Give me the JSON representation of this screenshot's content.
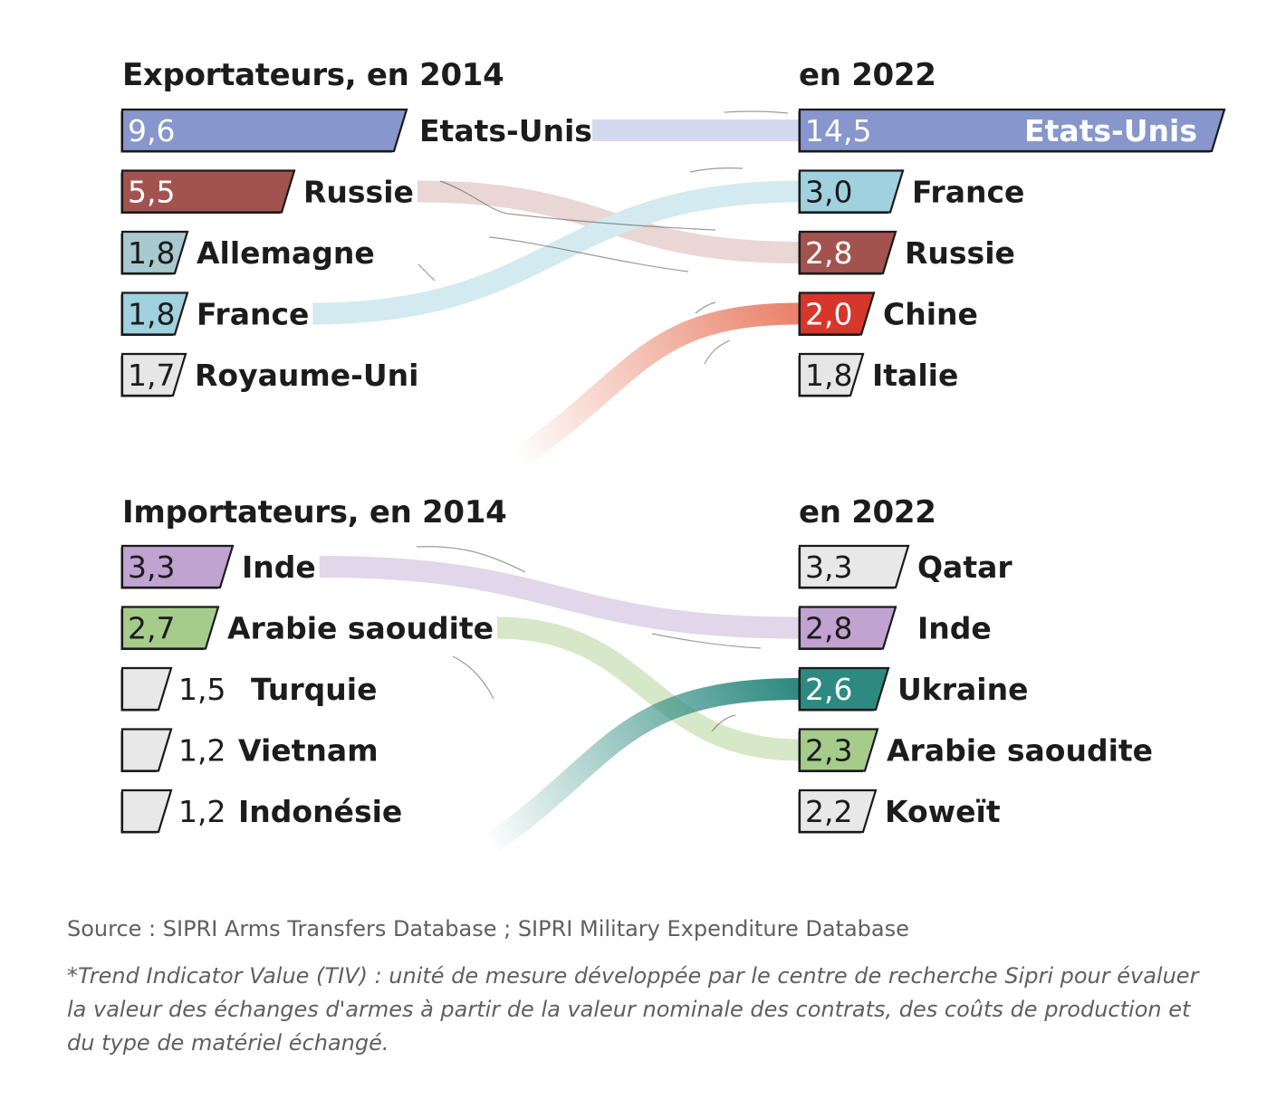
{
  "chart_data": [
    {
      "type": "bar",
      "title_left": "Exportateurs, en 2014",
      "title_right": "en 2022",
      "left": [
        {
          "name": "Etats-Unis",
          "value_label": "9,6",
          "value": 9.6,
          "color": "#8796cc"
        },
        {
          "name": "Russie",
          "value_label": "5,5",
          "value": 5.5,
          "color": "#a3534f"
        },
        {
          "name": "Allemagne",
          "value_label": "1,8",
          "value": 1.8,
          "color": "#a8c9cf"
        },
        {
          "name": "France",
          "value_label": "1,8",
          "value": 1.8,
          "color": "#9fd1de"
        },
        {
          "name": "Royaume-Uni",
          "value_label": "1,7",
          "value": 1.7,
          "color": "#e6e6e6"
        }
      ],
      "right": [
        {
          "name": "Etats-Unis",
          "value_label": "14,5",
          "value": 14.5,
          "color": "#8796cc"
        },
        {
          "name": "France",
          "value_label": "3,0",
          "value": 3.0,
          "color": "#9fd1de"
        },
        {
          "name": "Russie",
          "value_label": "2,8",
          "value": 2.8,
          "color": "#a3534f"
        },
        {
          "name": "Chine",
          "value_label": "2,0",
          "value": 2.0,
          "color": "#d7362b"
        },
        {
          "name": "Italie",
          "value_label": "1,8",
          "value": 1.8,
          "color": "#e6e6e6"
        }
      ],
      "links": [
        {
          "from": 0,
          "to": 0,
          "color": "#d3daf0"
        },
        {
          "from": 1,
          "to": 2,
          "color": "#ead6d4"
        },
        {
          "from": 3,
          "to": 1,
          "color": "#d3eaf0"
        },
        {
          "from": null,
          "to": 3,
          "color": "#e9836b"
        }
      ]
    },
    {
      "type": "bar",
      "title_left": "Importateurs, en 2014",
      "title_right": "en 2022",
      "left": [
        {
          "name": "Inde",
          "value_label": "3,3",
          "value": 3.3,
          "color": "#c1a3d1"
        },
        {
          "name": "Arabie saoudite",
          "value_label": "2,7",
          "value": 2.7,
          "color": "#a6cc8c"
        },
        {
          "name": "Turquie",
          "value_label": "1,5",
          "value": 1.5,
          "color": "#e8e8e8"
        },
        {
          "name": "Vietnam",
          "value_label": "1,2",
          "value": 1.2,
          "color": "#e8e8e8"
        },
        {
          "name": "Indonésie",
          "value_label": "1,2",
          "value": 1.2,
          "color": "#e8e8e8"
        }
      ],
      "right": [
        {
          "name": "Qatar",
          "value_label": "3,3",
          "value": 3.3,
          "color": "#e8e8e8"
        },
        {
          "name": "Inde",
          "value_label": "2,8",
          "value": 2.8,
          "color": "#c1a3d1"
        },
        {
          "name": "Ukraine",
          "value_label": "2,6",
          "value": 2.6,
          "color": "#2e8a80"
        },
        {
          "name": "Arabie saoudite",
          "value_label": "2,3",
          "value": 2.3,
          "color": "#a6cc8c"
        },
        {
          "name": "Koweït",
          "value_label": "2,2",
          "value": 2.2,
          "color": "#e8e8e8"
        }
      ],
      "links": [
        {
          "from": 0,
          "to": 1,
          "color": "#e2d6ea"
        },
        {
          "from": 1,
          "to": 3,
          "color": "#d6e8c8"
        },
        {
          "from": null,
          "to": 2,
          "color": "#2e8a80"
        }
      ]
    }
  ],
  "footer": {
    "source": "Source : SIPRI Arms Transfers Database ; SIPRI Military Expenditure Database",
    "note": "*Trend Indicator Value (TIV) : unité de mesure développée par le centre de recherche Sipri pour évaluer la valeur des échanges d'armes à partir de la valeur nominale des contrats, des coûts de production et du type de matériel échangé."
  }
}
